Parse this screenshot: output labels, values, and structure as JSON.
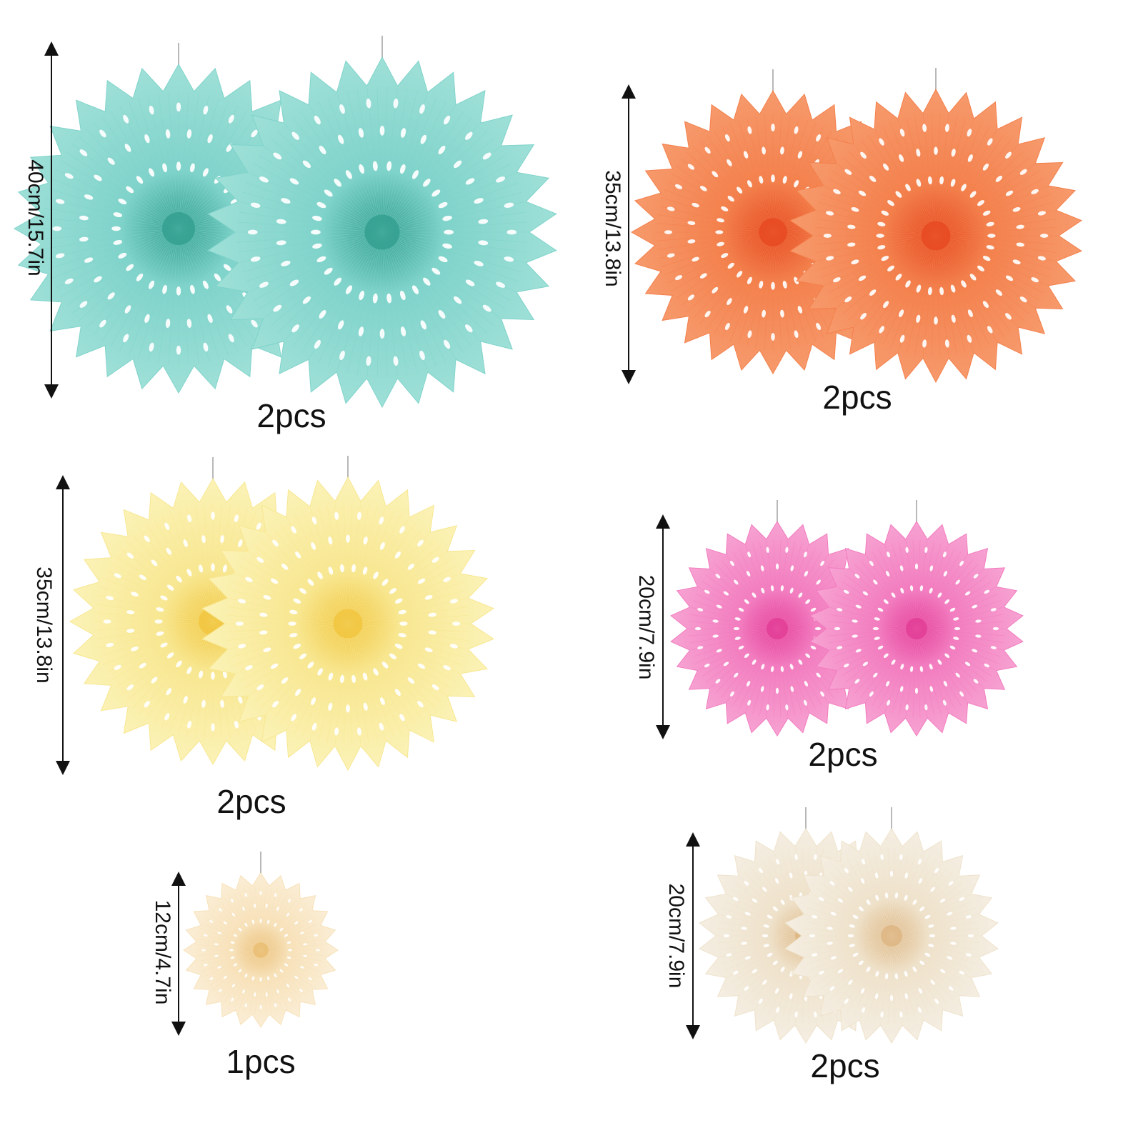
{
  "groups": [
    {
      "id": "turquoise",
      "size_label": "40cm/15.7in",
      "qty_label": "2pcs",
      "colors": {
        "light": "#9ee0d8",
        "mid": "#7fd3ca",
        "deep": "#2f9c8c"
      }
    },
    {
      "id": "orange",
      "size_label": "35cm/13.8in",
      "qty_label": "2pcs",
      "colors": {
        "light": "#f79a6c",
        "mid": "#f3804c",
        "deep": "#e5451f"
      }
    },
    {
      "id": "yellow",
      "size_label": "35cm/13.8in",
      "qty_label": "2pcs",
      "colors": {
        "light": "#fbf2b6",
        "mid": "#f8e791",
        "deep": "#f0c33a"
      }
    },
    {
      "id": "pink",
      "size_label": "20cm/7.9in",
      "qty_label": "2pcs",
      "colors": {
        "light": "#f7a2d2",
        "mid": "#f27cbf",
        "deep": "#e23893"
      }
    },
    {
      "id": "cream-small",
      "size_label": "12cm/4.7in",
      "qty_label": "1pcs",
      "colors": {
        "light": "#fbeed6",
        "mid": "#f7e1b9",
        "deep": "#e8b96b"
      }
    },
    {
      "id": "cream",
      "size_label": "20cm/7.9in",
      "qty_label": "2pcs",
      "colors": {
        "light": "#f4eee2",
        "mid": "#efe2cb",
        "deep": "#dcb27c"
      }
    }
  ]
}
